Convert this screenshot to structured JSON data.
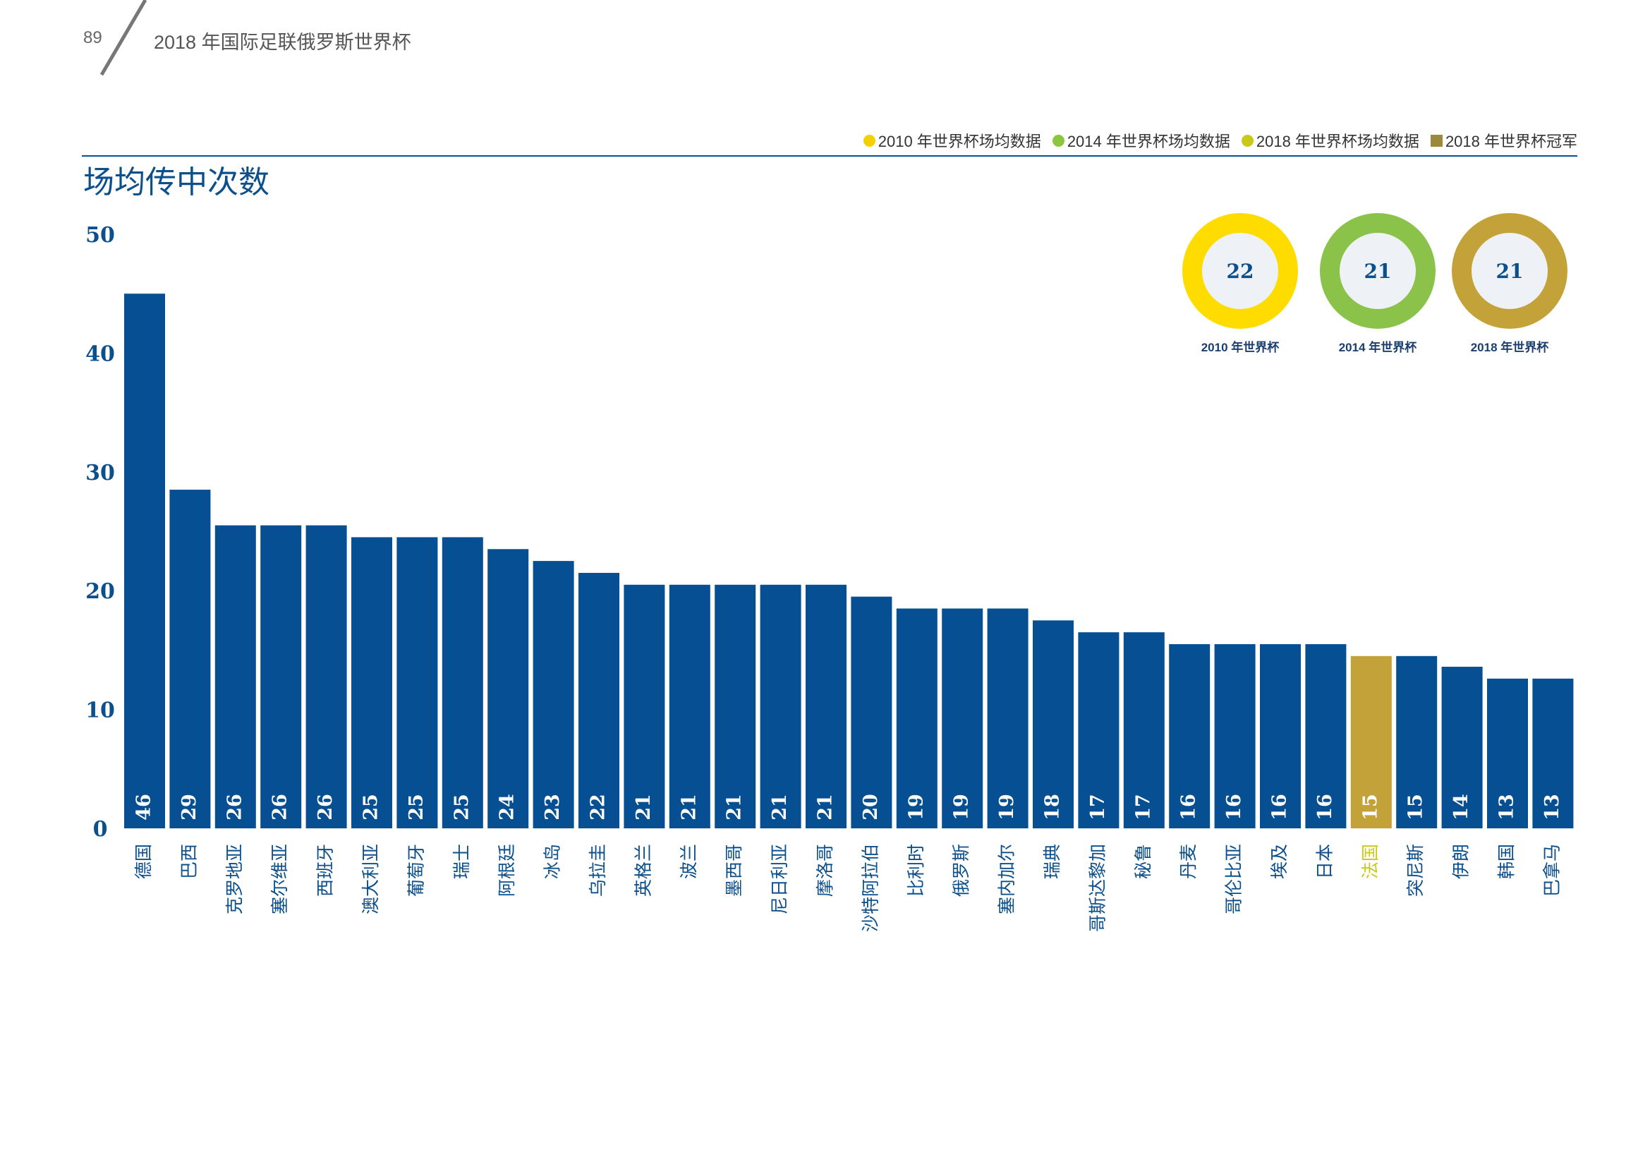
{
  "header": {
    "page_number": "89",
    "doc_title": "2018 年国际足联俄罗斯世界杯"
  },
  "legend": [
    {
      "label": "2010 年世界杯场均数据",
      "color": "#f5d000",
      "shape": "circle"
    },
    {
      "label": "2014 年世界杯场均数据",
      "color": "#8cc63f",
      "shape": "circle"
    },
    {
      "label": "2018 年世界杯场均数据",
      "color": "#c9c91a",
      "shape": "circle"
    },
    {
      "label": "2018 年世界杯冠军",
      "color": "#9c8a3c",
      "shape": "square"
    }
  ],
  "colors": {
    "bar": "#064f92",
    "champion_bar": "#c3a23a",
    "champion_label": "#c9c91a",
    "axis_text": "#0b4f8c"
  },
  "donuts": [
    {
      "value": "22",
      "label": "2010 年世界杯",
      "color": "#fedc00"
    },
    {
      "value": "21",
      "label": "2014 年世界杯",
      "color": "#8bc34a"
    },
    {
      "value": "21",
      "label": "2018 年世界杯",
      "color": "#c4a23a"
    }
  ],
  "chart_data": {
    "type": "bar",
    "title": "场均传中次数",
    "xlabel": "",
    "ylabel": "",
    "ylim": [
      0,
      50
    ],
    "yticks": [
      0,
      10,
      20,
      30,
      40,
      50
    ],
    "grid": false,
    "categories": [
      "德国",
      "巴西",
      "克罗地亚",
      "塞尔维亚",
      "西班牙",
      "澳大利亚",
      "葡萄牙",
      "瑞士",
      "阿根廷",
      "冰岛",
      "乌拉圭",
      "英格兰",
      "波兰",
      "墨西哥",
      "尼日利亚",
      "摩洛哥",
      "沙特阿拉伯",
      "比利时",
      "俄罗斯",
      "塞内加尔",
      "瑞典",
      "哥斯达黎加",
      "秘鲁",
      "丹麦",
      "哥伦比亚",
      "埃及",
      "日本",
      "法国",
      "突尼斯",
      "伊朗",
      "韩国",
      "巴拿马"
    ],
    "values": [
      46,
      29,
      26,
      26,
      26,
      25,
      25,
      25,
      24,
      23,
      22,
      21,
      21,
      21,
      21,
      21,
      20,
      19,
      19,
      19,
      18,
      17,
      17,
      16,
      16,
      16,
      16,
      15,
      15,
      14,
      13,
      13
    ],
    "bar_heights": [
      45,
      28.5,
      25.5,
      25.5,
      25.5,
      24.5,
      24.5,
      24.5,
      23.5,
      22.5,
      21.5,
      20.5,
      20.5,
      20.5,
      20.5,
      20.5,
      19.5,
      18.5,
      18.5,
      18.5,
      17.5,
      16.5,
      16.5,
      15.5,
      15.5,
      15.5,
      15.5,
      14.5,
      14.5,
      13.6,
      12.6,
      12.6
    ],
    "highlight": "法国"
  }
}
